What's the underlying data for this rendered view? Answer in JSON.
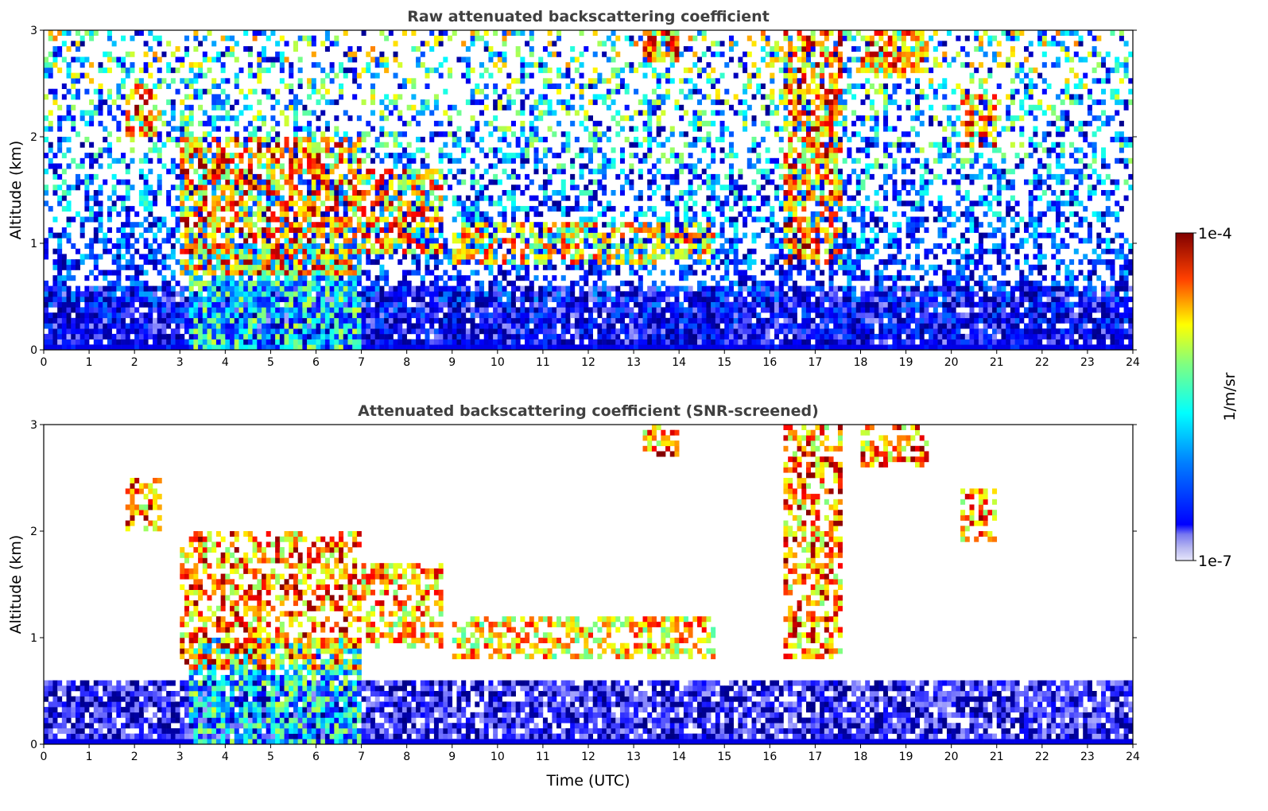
{
  "chart_data": [
    {
      "type": "heatmap",
      "title": "Raw attenuated backscattering coefficient",
      "xlabel": "",
      "ylabel": "Altitude (km)",
      "xlim": [
        0,
        24
      ],
      "ylim": [
        0,
        3
      ],
      "x_ticks": [
        "0",
        "1",
        "2",
        "3",
        "4",
        "5",
        "6",
        "7",
        "8",
        "9",
        "10",
        "11",
        "12",
        "13",
        "14",
        "15",
        "16",
        "17",
        "18",
        "19",
        "20",
        "21",
        "22",
        "23",
        "24"
      ],
      "y_ticks": [
        "0",
        "1",
        "2",
        "3"
      ],
      "features": [
        {
          "kind": "cloud",
          "x": [
            1.8,
            2.6
          ],
          "y": [
            2.0,
            2.5
          ],
          "level": 1.0
        },
        {
          "kind": "cloud",
          "x": [
            3.0,
            7.0
          ],
          "y": [
            0.7,
            2.0
          ],
          "level": 1.0
        },
        {
          "kind": "cloud",
          "x": [
            7.0,
            8.8
          ],
          "y": [
            0.9,
            1.7
          ],
          "level": 0.95
        },
        {
          "kind": "cloud",
          "x": [
            9.0,
            14.8
          ],
          "y": [
            0.8,
            1.2
          ],
          "level": 0.9
        },
        {
          "kind": "cloud",
          "x": [
            13.2,
            14.0
          ],
          "y": [
            2.7,
            3.0
          ],
          "level": 1.0
        },
        {
          "kind": "cloud",
          "x": [
            16.3,
            17.6
          ],
          "y": [
            0.8,
            3.0
          ],
          "level": 1.0
        },
        {
          "kind": "cloud",
          "x": [
            18.0,
            19.5
          ],
          "y": [
            2.6,
            3.0
          ],
          "level": 1.0
        },
        {
          "kind": "cloud",
          "x": [
            20.2,
            21.0
          ],
          "y": [
            1.9,
            2.4
          ],
          "level": 1.0
        },
        {
          "kind": "dense_column",
          "x": [
            3.2,
            7.0
          ],
          "y": [
            0.0,
            1.0
          ],
          "level": 0.7
        },
        {
          "kind": "boundary_layer",
          "x": [
            0.0,
            24.0
          ],
          "y": [
            0.0,
            0.6
          ],
          "level": 0.1
        }
      ]
    },
    {
      "type": "heatmap",
      "title": "Attenuated backscattering coefficient (SNR-screened)",
      "xlabel": "Time (UTC)",
      "ylabel": "Altitude (km)",
      "xlim": [
        0,
        24
      ],
      "ylim": [
        0,
        3
      ],
      "x_ticks": [
        "0",
        "1",
        "2",
        "3",
        "4",
        "5",
        "6",
        "7",
        "8",
        "9",
        "10",
        "11",
        "12",
        "13",
        "14",
        "15",
        "16",
        "17",
        "18",
        "19",
        "20",
        "21",
        "22",
        "23",
        "24"
      ],
      "y_ticks": [
        "0",
        "1",
        "2",
        "3"
      ],
      "features": [
        {
          "kind": "cloud",
          "x": [
            1.8,
            2.6
          ],
          "y": [
            2.0,
            2.5
          ],
          "level": 1.0
        },
        {
          "kind": "cloud",
          "x": [
            3.0,
            7.0
          ],
          "y": [
            0.7,
            2.0
          ],
          "level": 1.0
        },
        {
          "kind": "cloud",
          "x": [
            7.0,
            8.8
          ],
          "y": [
            0.9,
            1.7
          ],
          "level": 0.95
        },
        {
          "kind": "cloud",
          "x": [
            9.0,
            14.8
          ],
          "y": [
            0.8,
            1.2
          ],
          "level": 0.9
        },
        {
          "kind": "cloud",
          "x": [
            13.2,
            14.0
          ],
          "y": [
            2.7,
            3.0
          ],
          "level": 1.0
        },
        {
          "kind": "cloud",
          "x": [
            16.3,
            17.6
          ],
          "y": [
            0.8,
            3.0
          ],
          "level": 1.0
        },
        {
          "kind": "cloud",
          "x": [
            18.0,
            19.5
          ],
          "y": [
            2.6,
            3.0
          ],
          "level": 1.0
        },
        {
          "kind": "cloud",
          "x": [
            20.2,
            21.0
          ],
          "y": [
            1.9,
            2.4
          ],
          "level": 1.0
        },
        {
          "kind": "dense_column",
          "x": [
            3.2,
            7.0
          ],
          "y": [
            0.0,
            1.0
          ],
          "level": 0.7
        },
        {
          "kind": "boundary_layer",
          "x": [
            0.0,
            24.0
          ],
          "y": [
            0.0,
            0.6
          ],
          "level": 0.1
        }
      ]
    }
  ],
  "colorbar": {
    "label": "1/m/sr",
    "max_label": "1e-4",
    "min_label": "1e-7",
    "scale": "log",
    "colormap": "jet",
    "low_color": "#e6e6fa",
    "high_color": "#800000"
  }
}
